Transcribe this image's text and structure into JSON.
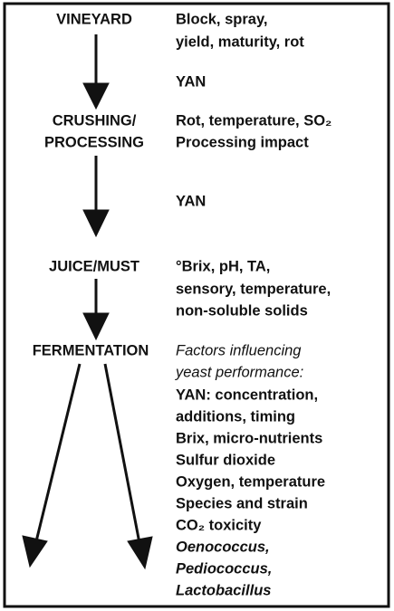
{
  "stages": [
    {
      "label": [
        "VINEYARD"
      ],
      "notes": [
        "Block, spray,",
        "yield, maturity, rot"
      ]
    },
    {
      "label": [
        "CRUSHING/",
        "PROCESSING"
      ],
      "notes": [
        "Rot, temperature, SO₂",
        "Processing impact"
      ]
    },
    {
      "label": [
        "JUICE/MUST"
      ],
      "notes": [
        "°Brix, pH, TA,",
        "sensory, temperature,",
        "non-soluble solids"
      ]
    },
    {
      "label": [
        "FERMENTATION"
      ],
      "intro": [
        "Factors influencing",
        "yeast performance:"
      ],
      "notes": [
        "YAN: concentration,",
        "additions, timing",
        "Brix, micro-nutrients",
        "Sulfur dioxide",
        "Oxygen, temperature",
        "Species and strain",
        "CO₂ toxicity"
      ],
      "organisms": [
        "Oenococcus,",
        "Pediococcus,",
        "Lactobacillus"
      ]
    }
  ],
  "between": [
    "YAN",
    "YAN"
  ]
}
